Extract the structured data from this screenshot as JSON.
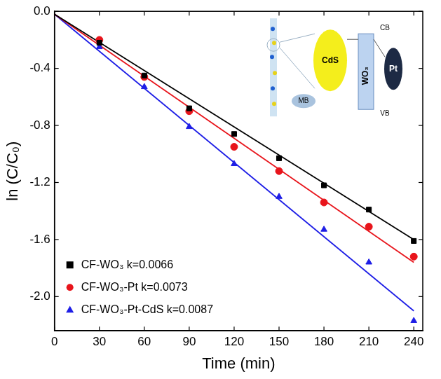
{
  "chart_data": {
    "type": "scatter",
    "x_label": "Time (min)",
    "y_label": "ln (C/C₀)",
    "xlim": [
      0,
      246
    ],
    "xticks": [
      0,
      30,
      60,
      90,
      120,
      150,
      180,
      210,
      240
    ],
    "ylim": [
      -2.24,
      0
    ],
    "yticks": [
      {
        "value": 0,
        "label": "0.0"
      },
      {
        "value": -0.4,
        "label": "-0.4"
      },
      {
        "value": -0.8,
        "label": "-0.8"
      },
      {
        "value": -1.2,
        "label": "-1.2"
      },
      {
        "value": -1.6,
        "label": "-1.6"
      },
      {
        "value": -2.0,
        "label": "-2.0"
      }
    ],
    "grid": false,
    "legend": "lower left",
    "x": [
      30,
      60,
      90,
      120,
      150,
      180,
      210,
      240
    ],
    "fit_x": [
      0,
      240
    ],
    "series": [
      {
        "name": "CF-WO₃ k=0.0066",
        "color": "#000000",
        "marker": "square",
        "values": [
          -0.22,
          -0.45,
          -0.68,
          -0.86,
          -1.03,
          -1.22,
          -1.39,
          -1.61
        ],
        "fit": [
          -0.02,
          -1.6
        ]
      },
      {
        "name": "CF-WO₃-Pt k=0.0073",
        "color": "#e8141b",
        "marker": "circle",
        "values": [
          -0.2,
          -0.46,
          -0.7,
          -0.95,
          -1.12,
          -1.34,
          -1.51,
          -1.72
        ],
        "fit": [
          -0.02,
          -1.76
        ]
      },
      {
        "name": "CF-WO₃-Pt-CdS k=0.0087",
        "color": "#1e1ee6",
        "marker": "triangle",
        "values": [
          -0.25,
          -0.53,
          -0.81,
          -1.07,
          -1.3,
          -1.53,
          -1.76,
          -2.17
        ],
        "fit": [
          -0.02,
          -2.1
        ]
      }
    ],
    "inset_labels": [
      "CdS",
      "WO₃",
      "Pt",
      "CB",
      "VB",
      "MB"
    ]
  }
}
